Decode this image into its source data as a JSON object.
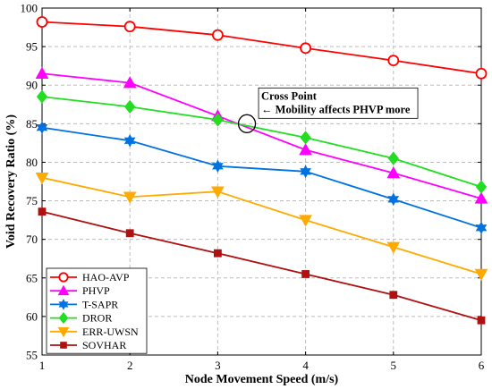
{
  "chart_data": {
    "type": "line",
    "title": "",
    "xlabel": "Node Movement Speed (m/s)",
    "ylabel": "Void Recovery Ratio (%)",
    "xlim": [
      1,
      6
    ],
    "ylim": [
      55,
      100
    ],
    "x": [
      1,
      2,
      3,
      4,
      5,
      6
    ],
    "xticks": [
      "1",
      "2",
      "3",
      "4",
      "5",
      "6"
    ],
    "yticks": [
      "55",
      "60",
      "65",
      "70",
      "75",
      "80",
      "85",
      "90",
      "95",
      "100"
    ],
    "grid": true,
    "legend_position": "bottom-left",
    "series": [
      {
        "name": "HAO-AVP",
        "values": [
          98.2,
          97.6,
          96.5,
          94.8,
          93.2,
          91.5
        ],
        "color": "#ff0000",
        "marker": "circle-open"
      },
      {
        "name": "PHVP",
        "values": [
          91.5,
          90.3,
          86.0,
          81.6,
          78.6,
          75.3
        ],
        "color": "#ff00ff",
        "marker": "triangle-up"
      },
      {
        "name": "T-SAPR",
        "values": [
          84.5,
          82.8,
          79.5,
          78.8,
          75.2,
          71.5
        ],
        "color": "#0072e0",
        "marker": "hexagram"
      },
      {
        "name": "DROR",
        "values": [
          88.5,
          87.2,
          85.5,
          83.2,
          80.5,
          76.8
        ],
        "color": "#22dd22",
        "marker": "diamond"
      },
      {
        "name": "ERR-UWSN",
        "values": [
          78.0,
          75.5,
          76.2,
          72.5,
          69.0,
          65.5
        ],
        "color": "#ffaa00",
        "marker": "triangle-down"
      },
      {
        "name": "SOVHAR",
        "values": [
          73.6,
          70.8,
          68.2,
          65.5,
          62.8,
          59.5
        ],
        "color": "#b01010",
        "marker": "square"
      }
    ],
    "annotation": {
      "title": "Cross Point",
      "text": "← Mobility affects PHVP more",
      "point": [
        3.2,
        85.0
      ]
    }
  }
}
